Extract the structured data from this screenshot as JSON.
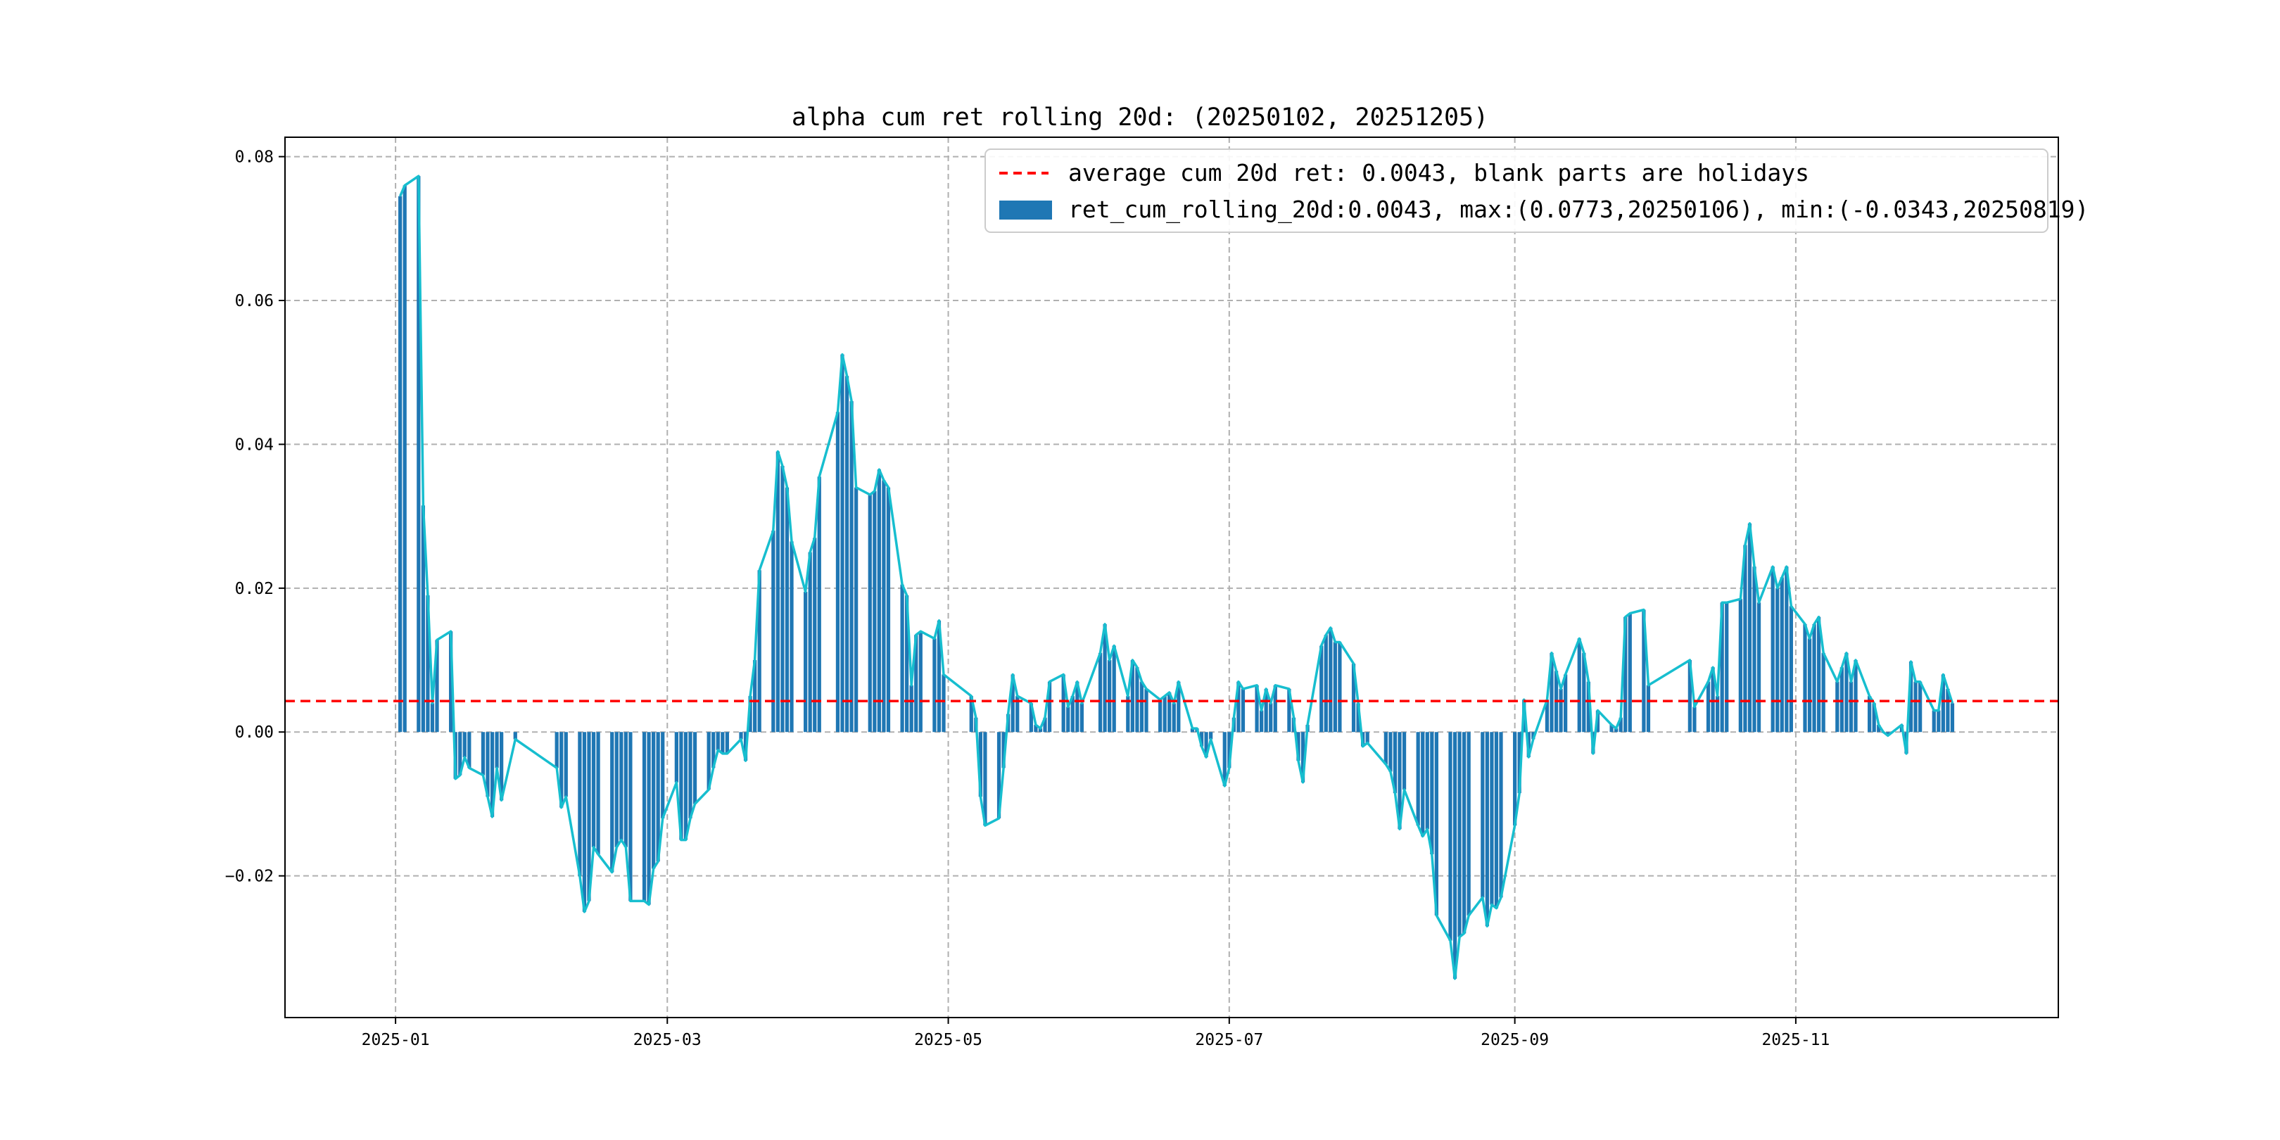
{
  "chart_data": {
    "type": "bar",
    "title": "alpha cum ret rolling 20d: (20250102, 20251205)",
    "xlabel": "",
    "ylabel": "",
    "x_range": [
      "2024-12-08",
      "2025-12-28"
    ],
    "ylim": [
      -0.0397,
      0.0827
    ],
    "grid": true,
    "legend_position": "upper-right",
    "x_ticks": [
      {
        "date": "2025-01-01",
        "label": "2025-01"
      },
      {
        "date": "2025-03-01",
        "label": "2025-03"
      },
      {
        "date": "2025-05-01",
        "label": "2025-05"
      },
      {
        "date": "2025-07-01",
        "label": "2025-07"
      },
      {
        "date": "2025-09-01",
        "label": "2025-09"
      },
      {
        "date": "2025-11-01",
        "label": "2025-11"
      }
    ],
    "y_ticks": [
      {
        "value": -0.02,
        "label": "−0.02"
      },
      {
        "value": 0.0,
        "label": "0.00"
      },
      {
        "value": 0.02,
        "label": "0.02"
      },
      {
        "value": 0.04,
        "label": "0.04"
      },
      {
        "value": 0.06,
        "label": "0.06"
      },
      {
        "value": 0.08,
        "label": "0.08"
      }
    ],
    "average": {
      "value": 0.0043,
      "label": "average cum 20d ret: 0.0043, blank parts are holidays",
      "color": "#ff0000"
    },
    "series": [
      {
        "name": "ret_cum_rolling_20d:0.0043, max:(0.0773,20250106), min:(-0.0343,20250819)",
        "bar_color": "#1f77b4",
        "line_color": "#17becf",
        "points": [
          [
            "2025-01-02",
            0.0745
          ],
          [
            "2025-01-03",
            0.076
          ],
          [
            "2025-01-06",
            0.0773
          ],
          [
            "2025-01-07",
            0.0315
          ],
          [
            "2025-01-08",
            0.019
          ],
          [
            "2025-01-09",
            0.004
          ],
          [
            "2025-01-10",
            0.0128
          ],
          [
            "2025-01-13",
            0.014
          ],
          [
            "2025-01-14",
            -0.0065
          ],
          [
            "2025-01-15",
            -0.006
          ],
          [
            "2025-01-16",
            -0.0035
          ],
          [
            "2025-01-17",
            -0.005
          ],
          [
            "2025-01-20",
            -0.006
          ],
          [
            "2025-01-21",
            -0.009
          ],
          [
            "2025-01-22",
            -0.0118
          ],
          [
            "2025-01-23",
            -0.005
          ],
          [
            "2025-01-24",
            -0.0095
          ],
          [
            "2025-01-27",
            -0.001
          ],
          [
            "2025-02-05",
            -0.005
          ],
          [
            "2025-02-06",
            -0.0105
          ],
          [
            "2025-02-07",
            -0.009
          ],
          [
            "2025-02-10",
            -0.02
          ],
          [
            "2025-02-11",
            -0.025
          ],
          [
            "2025-02-12",
            -0.0235
          ],
          [
            "2025-02-13",
            -0.016
          ],
          [
            "2025-02-14",
            -0.017
          ],
          [
            "2025-02-17",
            -0.0195
          ],
          [
            "2025-02-18",
            -0.016
          ],
          [
            "2025-02-19",
            -0.015
          ],
          [
            "2025-02-20",
            -0.016
          ],
          [
            "2025-02-21",
            -0.0235
          ],
          [
            "2025-02-24",
            -0.0235
          ],
          [
            "2025-02-25",
            -0.024
          ],
          [
            "2025-02-26",
            -0.019
          ],
          [
            "2025-02-27",
            -0.018
          ],
          [
            "2025-02-28",
            -0.012
          ],
          [
            "2025-03-03",
            -0.007
          ],
          [
            "2025-03-04",
            -0.015
          ],
          [
            "2025-03-05",
            -0.015
          ],
          [
            "2025-03-06",
            -0.012
          ],
          [
            "2025-03-07",
            -0.01
          ],
          [
            "2025-03-10",
            -0.008
          ],
          [
            "2025-03-11",
            -0.005
          ],
          [
            "2025-03-12",
            -0.0025
          ],
          [
            "2025-03-13",
            -0.003
          ],
          [
            "2025-03-14",
            -0.003
          ],
          [
            "2025-03-17",
            -0.001
          ],
          [
            "2025-03-18",
            -0.004
          ],
          [
            "2025-03-19",
            0.005
          ],
          [
            "2025-03-20",
            0.01
          ],
          [
            "2025-03-21",
            0.0225
          ],
          [
            "2025-03-24",
            0.028
          ],
          [
            "2025-03-25",
            0.039
          ],
          [
            "2025-03-26",
            0.037
          ],
          [
            "2025-03-27",
            0.034
          ],
          [
            "2025-03-28",
            0.0265
          ],
          [
            "2025-03-31",
            0.0195
          ],
          [
            "2025-04-01",
            0.025
          ],
          [
            "2025-04-02",
            0.027
          ],
          [
            "2025-04-03",
            0.0355
          ],
          [
            "2025-04-07",
            0.0445
          ],
          [
            "2025-04-08",
            0.0525
          ],
          [
            "2025-04-09",
            0.0495
          ],
          [
            "2025-04-10",
            0.046
          ],
          [
            "2025-04-11",
            0.034
          ],
          [
            "2025-04-14",
            0.033
          ],
          [
            "2025-04-15",
            0.0335
          ],
          [
            "2025-04-16",
            0.0365
          ],
          [
            "2025-04-17",
            0.035
          ],
          [
            "2025-04-18",
            0.034
          ],
          [
            "2025-04-21",
            0.0205
          ],
          [
            "2025-04-22",
            0.019
          ],
          [
            "2025-04-23",
            0.0065
          ],
          [
            "2025-04-24",
            0.0135
          ],
          [
            "2025-04-25",
            0.014
          ],
          [
            "2025-04-28",
            0.013
          ],
          [
            "2025-04-29",
            0.0155
          ],
          [
            "2025-04-30",
            0.008
          ],
          [
            "2025-05-06",
            0.005
          ],
          [
            "2025-05-07",
            0.002
          ],
          [
            "2025-05-08",
            -0.009
          ],
          [
            "2025-05-09",
            -0.013
          ],
          [
            "2025-05-12",
            -0.012
          ],
          [
            "2025-05-13",
            -0.005
          ],
          [
            "2025-05-14",
            0.0025
          ],
          [
            "2025-05-15",
            0.008
          ],
          [
            "2025-05-16",
            0.005
          ],
          [
            "2025-05-19",
            0.004
          ],
          [
            "2025-05-20",
            0.001
          ],
          [
            "2025-05-21",
            0.0005
          ],
          [
            "2025-05-22",
            0.002
          ],
          [
            "2025-05-23",
            0.007
          ],
          [
            "2025-05-26",
            0.008
          ],
          [
            "2025-05-27",
            0.0035
          ],
          [
            "2025-05-28",
            0.005
          ],
          [
            "2025-05-29",
            0.007
          ],
          [
            "2025-05-30",
            0.004
          ],
          [
            "2025-06-03",
            0.011
          ],
          [
            "2025-06-04",
            0.015
          ],
          [
            "2025-06-05",
            0.01
          ],
          [
            "2025-06-06",
            0.012
          ],
          [
            "2025-06-09",
            0.005
          ],
          [
            "2025-06-10",
            0.01
          ],
          [
            "2025-06-11",
            0.009
          ],
          [
            "2025-06-12",
            0.007
          ],
          [
            "2025-06-13",
            0.006
          ],
          [
            "2025-06-16",
            0.0045
          ],
          [
            "2025-06-17",
            0.005
          ],
          [
            "2025-06-18",
            0.0055
          ],
          [
            "2025-06-19",
            0.004
          ],
          [
            "2025-06-20",
            0.007
          ],
          [
            "2025-06-23",
            0.0005
          ],
          [
            "2025-06-24",
            0.0005
          ],
          [
            "2025-06-25",
            -0.002
          ],
          [
            "2025-06-26",
            -0.0035
          ],
          [
            "2025-06-27",
            -0.001
          ],
          [
            "2025-06-30",
            -0.0075
          ],
          [
            "2025-07-01",
            -0.005
          ],
          [
            "2025-07-02",
            0.002
          ],
          [
            "2025-07-03",
            0.007
          ],
          [
            "2025-07-04",
            0.006
          ],
          [
            "2025-07-07",
            0.0065
          ],
          [
            "2025-07-08",
            0.003
          ],
          [
            "2025-07-09",
            0.006
          ],
          [
            "2025-07-10",
            0.004
          ],
          [
            "2025-07-11",
            0.0065
          ],
          [
            "2025-07-14",
            0.006
          ],
          [
            "2025-07-15",
            0.002
          ],
          [
            "2025-07-16",
            -0.004
          ],
          [
            "2025-07-17",
            -0.007
          ],
          [
            "2025-07-18",
            0.001
          ],
          [
            "2025-07-21",
            0.012
          ],
          [
            "2025-07-22",
            0.0135
          ],
          [
            "2025-07-23",
            0.0145
          ],
          [
            "2025-07-24",
            0.0125
          ],
          [
            "2025-07-25",
            0.0125
          ],
          [
            "2025-07-28",
            0.0095
          ],
          [
            "2025-07-29",
            0.004
          ],
          [
            "2025-07-30",
            -0.002
          ],
          [
            "2025-07-31",
            -0.0015
          ],
          [
            "2025-08-04",
            -0.0045
          ],
          [
            "2025-08-05",
            -0.0055
          ],
          [
            "2025-08-06",
            -0.0085
          ],
          [
            "2025-08-07",
            -0.0135
          ],
          [
            "2025-08-08",
            -0.008
          ],
          [
            "2025-08-11",
            -0.013
          ],
          [
            "2025-08-12",
            -0.0145
          ],
          [
            "2025-08-13",
            -0.0135
          ],
          [
            "2025-08-14",
            -0.017
          ],
          [
            "2025-08-15",
            -0.0255
          ],
          [
            "2025-08-18",
            -0.029
          ],
          [
            "2025-08-19",
            -0.0343
          ],
          [
            "2025-08-20",
            -0.0285
          ],
          [
            "2025-08-21",
            -0.028
          ],
          [
            "2025-08-22",
            -0.0255
          ],
          [
            "2025-08-25",
            -0.023
          ],
          [
            "2025-08-26",
            -0.027
          ],
          [
            "2025-08-27",
            -0.024
          ],
          [
            "2025-08-28",
            -0.0245
          ],
          [
            "2025-08-29",
            -0.023
          ],
          [
            "2025-09-01",
            -0.013
          ],
          [
            "2025-09-02",
            -0.0085
          ],
          [
            "2025-09-03",
            0.0045
          ],
          [
            "2025-09-04",
            -0.0035
          ],
          [
            "2025-09-05",
            -0.001
          ],
          [
            "2025-09-08",
            0.0045
          ],
          [
            "2025-09-09",
            0.011
          ],
          [
            "2025-09-10",
            0.0085
          ],
          [
            "2025-09-11",
            0.006
          ],
          [
            "2025-09-12",
            0.008
          ],
          [
            "2025-09-15",
            0.013
          ],
          [
            "2025-09-16",
            0.011
          ],
          [
            "2025-09-17",
            0.007
          ],
          [
            "2025-09-18",
            -0.003
          ],
          [
            "2025-09-19",
            0.003
          ],
          [
            "2025-09-22",
            0.001
          ],
          [
            "2025-09-23",
            0.0005
          ],
          [
            "2025-09-24",
            0.002
          ],
          [
            "2025-09-25",
            0.016
          ],
          [
            "2025-09-26",
            0.0165
          ],
          [
            "2025-09-29",
            0.017
          ],
          [
            "2025-09-30",
            0.0065
          ],
          [
            "2025-10-09",
            0.01
          ],
          [
            "2025-10-10",
            0.0035
          ],
          [
            "2025-10-13",
            0.007
          ],
          [
            "2025-10-14",
            0.009
          ],
          [
            "2025-10-15",
            0.005
          ],
          [
            "2025-10-16",
            0.018
          ],
          [
            "2025-10-17",
            0.018
          ],
          [
            "2025-10-20",
            0.0185
          ],
          [
            "2025-10-21",
            0.026
          ],
          [
            "2025-10-22",
            0.029
          ],
          [
            "2025-10-23",
            0.023
          ],
          [
            "2025-10-24",
            0.018
          ],
          [
            "2025-10-27",
            0.023
          ],
          [
            "2025-10-28",
            0.02
          ],
          [
            "2025-10-29",
            0.0215
          ],
          [
            "2025-10-30",
            0.023
          ],
          [
            "2025-10-31",
            0.0175
          ],
          [
            "2025-11-03",
            0.015
          ],
          [
            "2025-11-04",
            0.013
          ],
          [
            "2025-11-05",
            0.015
          ],
          [
            "2025-11-06",
            0.016
          ],
          [
            "2025-11-07",
            0.011
          ],
          [
            "2025-11-10",
            0.007
          ],
          [
            "2025-11-11",
            0.009
          ],
          [
            "2025-11-12",
            0.011
          ],
          [
            "2025-11-13",
            0.007
          ],
          [
            "2025-11-14",
            0.01
          ],
          [
            "2025-11-17",
            0.005
          ],
          [
            "2025-11-18",
            0.004
          ],
          [
            "2025-11-19",
            0.001
          ],
          [
            "2025-11-20",
            0.0
          ],
          [
            "2025-11-21",
            -0.0005
          ],
          [
            "2025-11-24",
            0.001
          ],
          [
            "2025-11-25",
            -0.003
          ],
          [
            "2025-11-26",
            0.0098
          ],
          [
            "2025-11-27",
            0.007
          ],
          [
            "2025-11-28",
            0.007
          ],
          [
            "2025-12-01",
            0.003
          ],
          [
            "2025-12-02",
            0.003
          ],
          [
            "2025-12-03",
            0.008
          ],
          [
            "2025-12-04",
            0.006
          ],
          [
            "2025-12-05",
            0.004
          ]
        ]
      }
    ]
  }
}
